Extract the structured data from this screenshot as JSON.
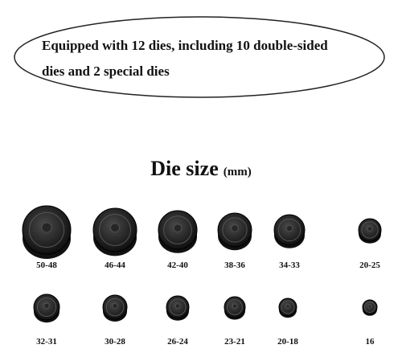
{
  "callout": {
    "lines": [
      "Equipped with 12 dies, including 10 double-sided",
      "dies and 2 special dies"
    ]
  },
  "heading": {
    "title": "Die size",
    "unit": "(mm)"
  },
  "dies": {
    "rows": [
      [
        "50-48",
        "46-44",
        "42-40",
        "38-36",
        "34-33",
        "20-25"
      ],
      [
        "32-31",
        "30-28",
        "26-24",
        "23-21",
        "20-18",
        "16"
      ]
    ]
  }
}
